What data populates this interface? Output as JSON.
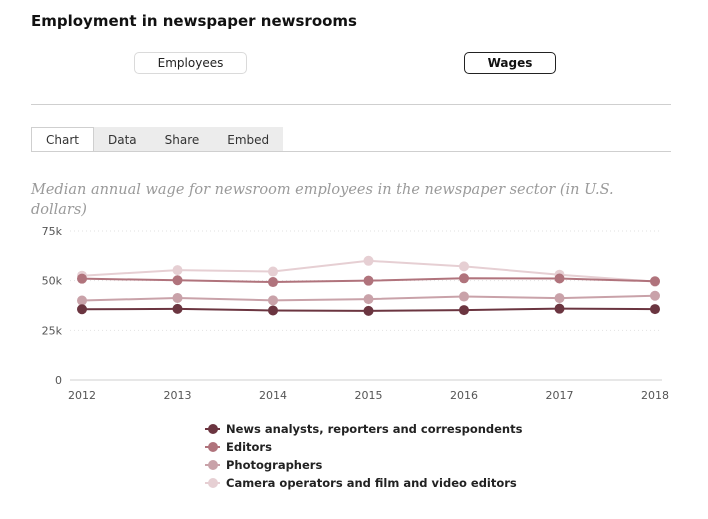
{
  "header": {
    "title": "Employment in newspaper newsrooms"
  },
  "toggles": {
    "employees_label": "Employees",
    "wages_label": "Wages",
    "selected": "Wages"
  },
  "tabs": [
    {
      "label": "Chart",
      "active": true
    },
    {
      "label": "Data",
      "active": false
    },
    {
      "label": "Share",
      "active": false
    },
    {
      "label": "Embed",
      "active": false
    }
  ],
  "chart_data": {
    "type": "line",
    "title": "Median annual wage for newsroom employees in the newspaper sector (in U.S. dollars)",
    "xlabel": "",
    "ylabel": "",
    "x": [
      2012,
      2013,
      2014,
      2015,
      2016,
      2017,
      2018
    ],
    "x_tick_labels": [
      "2012",
      "2013",
      "2014",
      "2015",
      "2016",
      "2017",
      "2018"
    ],
    "ylim": [
      0,
      75000
    ],
    "y_ticks": [
      0,
      25000,
      50000,
      75000
    ],
    "y_tick_labels": [
      "0",
      "25k",
      "50k",
      "75k"
    ],
    "grid": true,
    "legend_position": "bottom",
    "series": [
      {
        "name": "News analysts, reporters and correspondents",
        "color": "#6b3540",
        "values": [
          35600,
          35800,
          35000,
          34800,
          35200,
          35900,
          35700
        ]
      },
      {
        "name": "Editors",
        "color": "#b0737c",
        "values": [
          51000,
          50200,
          49300,
          50000,
          51200,
          51100,
          49700
        ]
      },
      {
        "name": "Photographers",
        "color": "#c9a2a9",
        "values": [
          40000,
          41300,
          40100,
          40700,
          42000,
          41200,
          42400
        ]
      },
      {
        "name": "Camera operators and film and video editors",
        "color": "#e6cfd3",
        "values": [
          52500,
          55300,
          54600,
          60000,
          57200,
          53000,
          49500
        ]
      }
    ]
  }
}
